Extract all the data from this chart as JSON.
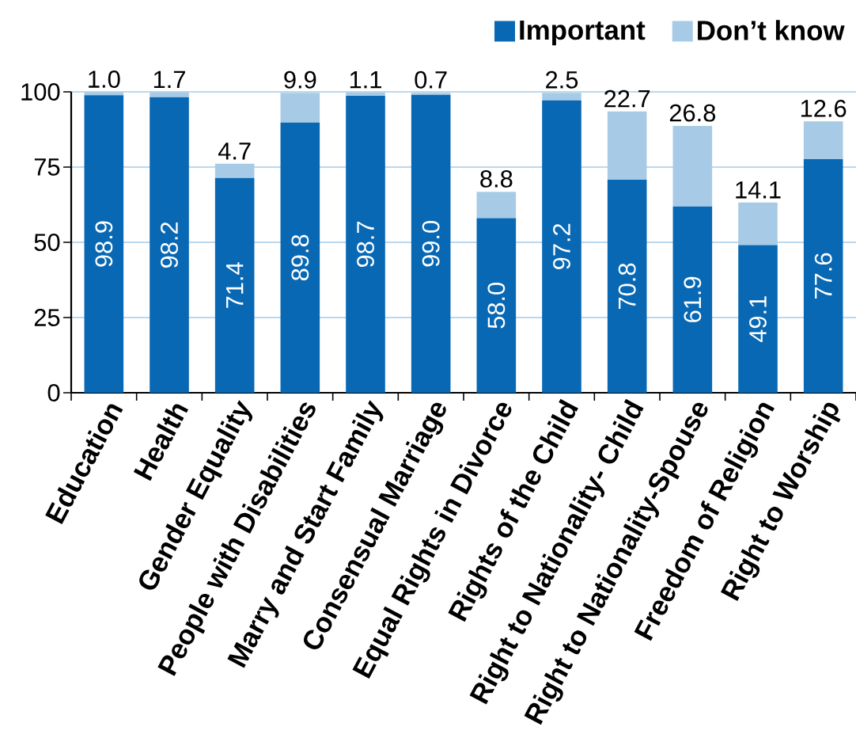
{
  "chart_data": {
    "type": "bar",
    "stacked": true,
    "categories": [
      "Education",
      "Health",
      "Gender Equality",
      "People with Disabilities",
      "Marry and Start Family",
      "Consensual Marriage",
      "Equal Rights in Divorce",
      "Rights of the Child",
      "Right to Nationality- Child",
      "Right to Nationality-Spouse",
      "Freedom of Religion",
      "Right to Worship"
    ],
    "series": [
      {
        "name": "Important",
        "color": "#0868b3",
        "values": [
          98.9,
          98.2,
          71.4,
          89.8,
          98.7,
          99.0,
          58.0,
          97.2,
          70.8,
          61.9,
          49.1,
          77.6
        ],
        "value_labels": [
          "98.9",
          "98.2",
          "71.4",
          "89.8",
          "98.7",
          "99.0",
          "58.0",
          "97.2",
          "70.8",
          "61.9",
          "49.1",
          "77.6"
        ]
      },
      {
        "name": "Don’t know",
        "color": "#a7cbe6",
        "values": [
          1.0,
          1.7,
          4.7,
          9.9,
          1.1,
          0.7,
          8.8,
          2.5,
          22.7,
          26.8,
          14.1,
          12.6
        ],
        "value_labels": [
          "1.0",
          "1.7",
          "4.7",
          "9.9",
          "1.1",
          "0.7",
          "8.8",
          "2.5",
          "22.7",
          "26.8",
          "14.1",
          "12.6"
        ]
      }
    ],
    "ylim": [
      0,
      100
    ],
    "yticks": [
      0,
      25,
      50,
      75,
      100
    ],
    "grid": "y",
    "legend": "top right"
  }
}
